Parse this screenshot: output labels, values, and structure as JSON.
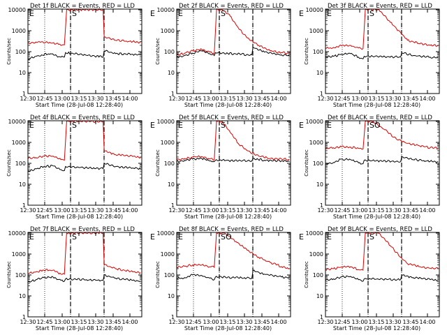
{
  "chart_data": [
    {
      "type": "line",
      "title": "Det 1f  BLACK = Events, RED = LLD",
      "ylabel": "Counts/sec",
      "xlabel": "Start Time (28-Jul-08 12:28:40)",
      "x_ticks": [
        "12:30",
        "12:45",
        "13:00",
        "13:15",
        "13:30",
        "13:45",
        "14:00"
      ],
      "y_ticks": [
        "1",
        "10",
        "100",
        "1000",
        "10000"
      ],
      "ylim": [
        1,
        10000
      ],
      "yscale": "log",
      "xlim": [
        "12:28",
        "14:08"
      ],
      "markers": [
        "E",
        "S",
        "E"
      ],
      "series": [
        {
          "color": "#000000",
          "x": [
            "12:28",
            "12:35",
            "12:40",
            "12:48",
            "12:55",
            "13:00",
            "13:01",
            "13:34",
            "13:35",
            "13:45",
            "14:00",
            "14:07"
          ],
          "y": [
            45,
            60,
            70,
            80,
            58,
            55,
            90,
            55,
            110,
            80,
            75,
            70
          ]
        },
        {
          "color": "#dd0000",
          "x": [
            "12:28",
            "12:35",
            "12:40",
            "12:48",
            "12:55",
            "13:00",
            "13:02",
            "13:34",
            "13:35",
            "13:45",
            "14:00",
            "14:07"
          ],
          "y": [
            250,
            290,
            300,
            260,
            220,
            210,
            10000,
            10000,
            500,
            350,
            300,
            280
          ]
        }
      ]
    },
    {
      "type": "line",
      "title": "Det 2f  BLACK = Events, RED = LLD",
      "ylabel": "Counts/sec",
      "xlabel": "Start Time (28-Jul-08 12:28:40)",
      "x_ticks": [
        "12:30",
        "12:45",
        "13:00",
        "13:15",
        "13:30",
        "13:45",
        "14:00"
      ],
      "y_ticks": [
        "1",
        "10",
        "100",
        "1000",
        "10000"
      ],
      "ylim": [
        1,
        10000
      ],
      "yscale": "log",
      "xlim": [
        "12:28",
        "14:08"
      ],
      "markers": [
        "E",
        "S",
        "E"
      ],
      "series": [
        {
          "color": "#000000",
          "x": [
            "12:28",
            "12:35",
            "12:42",
            "12:50",
            "12:57",
            "13:01",
            "13:02",
            "13:34",
            "13:35",
            "13:45",
            "14:00",
            "14:07"
          ],
          "y": [
            55,
            65,
            85,
            110,
            80,
            65,
            90,
            70,
            160,
            95,
            70,
            65
          ]
        },
        {
          "color": "#dd0000",
          "x": [
            "12:28",
            "12:35",
            "12:42",
            "12:50",
            "12:57",
            "13:01",
            "13:03",
            "13:08",
            "13:15",
            "13:22",
            "13:30",
            "13:40",
            "13:50",
            "14:00",
            "14:07"
          ],
          "y": [
            70,
            85,
            110,
            130,
            95,
            85,
            10000,
            10000,
            5000,
            1400,
            450,
            200,
            110,
            90,
            85
          ]
        }
      ]
    },
    {
      "type": "line",
      "title": "Det 3f  BLACK = Events, RED = LLD",
      "ylabel": "Counts/sec",
      "xlabel": "Start Time (28-Jul-08 12:28:40)",
      "x_ticks": [
        "12:30",
        "12:45",
        "13:00",
        "13:15",
        "13:30",
        "13:45",
        "14:00"
      ],
      "y_ticks": [
        "1",
        "10",
        "100",
        "1000",
        "10000"
      ],
      "ylim": [
        1,
        10000
      ],
      "yscale": "log",
      "xlim": [
        "12:28",
        "14:08"
      ],
      "markers": [
        "E",
        "S",
        "E"
      ],
      "series": [
        {
          "color": "#000000",
          "x": [
            "12:28",
            "12:35",
            "12:42",
            "12:50",
            "12:57",
            "13:01",
            "13:02",
            "13:34",
            "13:35",
            "13:45",
            "14:00",
            "14:07"
          ],
          "y": [
            55,
            60,
            75,
            80,
            55,
            45,
            60,
            55,
            90,
            65,
            55,
            50
          ]
        },
        {
          "color": "#dd0000",
          "x": [
            "12:28",
            "12:35",
            "12:42",
            "12:50",
            "12:57",
            "13:01",
            "13:03",
            "13:15",
            "13:25",
            "13:34",
            "13:40",
            "13:50",
            "14:00",
            "14:07"
          ],
          "y": [
            140,
            160,
            190,
            200,
            150,
            140,
            10000,
            10000,
            2500,
            800,
            350,
            250,
            200,
            190
          ]
        }
      ]
    },
    {
      "type": "line",
      "title": "Det 4f  BLACK = Events, RED = LLD",
      "ylabel": "Counts/sec",
      "xlabel": "Start Time (28-Jul-08 12:28:40)",
      "x_ticks": [
        "12:30",
        "12:45",
        "13:00",
        "13:15",
        "13:30",
        "13:45",
        "14:00"
      ],
      "y_ticks": [
        "1",
        "10",
        "100",
        "1000",
        "10000"
      ],
      "ylim": [
        1,
        10000
      ],
      "yscale": "log",
      "xlim": [
        "12:28",
        "14:08"
      ],
      "markers": [
        "E",
        "S",
        "E"
      ],
      "series": [
        {
          "color": "#000000",
          "x": [
            "12:28",
            "12:35",
            "12:42",
            "12:50",
            "12:57",
            "13:00",
            "13:01",
            "13:34",
            "13:35",
            "13:45",
            "14:00",
            "14:07"
          ],
          "y": [
            40,
            55,
            70,
            75,
            50,
            45,
            70,
            55,
            100,
            70,
            60,
            55
          ]
        },
        {
          "color": "#dd0000",
          "x": [
            "12:28",
            "12:35",
            "12:42",
            "12:50",
            "12:57",
            "13:00",
            "13:02",
            "13:34",
            "13:35",
            "13:45",
            "14:00",
            "14:07"
          ],
          "y": [
            170,
            190,
            220,
            220,
            150,
            140,
            10000,
            10000,
            400,
            260,
            210,
            190
          ]
        }
      ]
    },
    {
      "type": "line",
      "title": "Det 5f  BLACK = Events, RED = LLD",
      "ylabel": "Counts/sec",
      "xlabel": "Start Time (28-Jul-08 12:28:40)",
      "x_ticks": [
        "12:30",
        "12:45",
        "13:00",
        "13:15",
        "13:30",
        "13:45",
        "14:00"
      ],
      "y_ticks": [
        "1",
        "10",
        "100",
        "1000",
        "10000"
      ],
      "ylim": [
        1,
        10000
      ],
      "yscale": "log",
      "xlim": [
        "12:28",
        "14:08"
      ],
      "markers": [
        "E",
        "S",
        "E"
      ],
      "series": [
        {
          "color": "#000000",
          "x": [
            "12:28",
            "12:35",
            "12:42",
            "12:50",
            "12:57",
            "13:01",
            "13:02",
            "13:34",
            "13:35",
            "13:45",
            "14:00",
            "14:07"
          ],
          "y": [
            120,
            140,
            160,
            170,
            130,
            120,
            140,
            130,
            170,
            140,
            130,
            120
          ]
        },
        {
          "color": "#dd0000",
          "x": [
            "12:28",
            "12:35",
            "12:42",
            "12:50",
            "12:57",
            "13:01",
            "13:03",
            "13:08",
            "13:15",
            "13:22",
            "13:30",
            "13:40",
            "13:50",
            "14:00",
            "14:07"
          ],
          "y": [
            150,
            170,
            200,
            210,
            160,
            150,
            10000,
            10000,
            3000,
            900,
            400,
            220,
            170,
            160,
            150
          ]
        }
      ]
    },
    {
      "type": "line",
      "title": "Det 6f  BLACK = Events, RED = LLD",
      "ylabel": "Counts/sec",
      "xlabel": "Start Time (28-Jul-08 12:28:40)",
      "x_ticks": [
        "12:30",
        "12:45",
        "13:00",
        "13:15",
        "13:30",
        "13:45",
        "14:00"
      ],
      "y_ticks": [
        "1",
        "10",
        "100",
        "1000",
        "10000"
      ],
      "ylim": [
        1,
        10000
      ],
      "yscale": "log",
      "xlim": [
        "12:28",
        "14:08"
      ],
      "markers": [
        "E",
        "SO",
        "E"
      ],
      "series": [
        {
          "color": "#000000",
          "x": [
            "12:28",
            "12:35",
            "12:42",
            "12:50",
            "12:57",
            "13:01",
            "13:02",
            "13:34",
            "13:35",
            "13:45",
            "14:00",
            "14:07"
          ],
          "y": [
            95,
            110,
            160,
            150,
            105,
            95,
            140,
            120,
            200,
            150,
            125,
            120
          ]
        },
        {
          "color": "#dd0000",
          "x": [
            "12:28",
            "12:35",
            "12:42",
            "12:50",
            "12:57",
            "13:01",
            "13:03",
            "13:10",
            "13:20",
            "13:30",
            "13:40",
            "13:50",
            "14:00",
            "14:07"
          ],
          "y": [
            500,
            560,
            620,
            600,
            520,
            480,
            10000,
            10000,
            4000,
            1500,
            900,
            700,
            560,
            520
          ]
        }
      ]
    },
    {
      "type": "line",
      "title": "Det 7f  BLACK = Events, RED = LLD",
      "ylabel": "Counts/sec",
      "xlabel": "Start Time (28-Jul-08 12:28:40)",
      "x_ticks": [
        "12:30",
        "12:45",
        "13:00",
        "13:15",
        "13:30",
        "13:45",
        "14:00"
      ],
      "y_ticks": [
        "1",
        "10",
        "100",
        "1000",
        "10000"
      ],
      "ylim": [
        1,
        10000
      ],
      "yscale": "log",
      "xlim": [
        "12:28",
        "14:08"
      ],
      "markers": [
        "E",
        "S",
        "E"
      ],
      "series": [
        {
          "color": "#000000",
          "x": [
            "12:28",
            "12:35",
            "12:42",
            "12:50",
            "12:57",
            "13:00",
            "13:01",
            "13:34",
            "13:35",
            "13:45",
            "14:00",
            "14:07"
          ],
          "y": [
            45,
            60,
            75,
            80,
            55,
            50,
            65,
            55,
            100,
            70,
            55,
            50
          ]
        },
        {
          "color": "#dd0000",
          "x": [
            "12:28",
            "12:35",
            "12:42",
            "12:50",
            "12:57",
            "13:00",
            "13:02",
            "13:34",
            "13:35",
            "13:45",
            "14:00",
            "14:07"
          ],
          "y": [
            120,
            140,
            170,
            170,
            110,
            110,
            10000,
            10000,
            300,
            200,
            140,
            130
          ]
        }
      ]
    },
    {
      "type": "line",
      "title": "Det 8f  BLACK = Events, RED = LLD",
      "ylabel": "Counts/sec",
      "xlabel": "Start Time (28-Jul-08 12:28:40)",
      "x_ticks": [
        "12:30",
        "12:45",
        "13:00",
        "13:15",
        "13:30",
        "13:45",
        "14:00"
      ],
      "y_ticks": [
        "1",
        "10",
        "100",
        "1000",
        "10000"
      ],
      "ylim": [
        1,
        10000
      ],
      "yscale": "log",
      "xlim": [
        "12:28",
        "14:08"
      ],
      "markers": [
        "E",
        "SO",
        "E"
      ],
      "series": [
        {
          "color": "#000000",
          "x": [
            "12:28",
            "12:35",
            "12:42",
            "12:50",
            "12:57",
            "13:01",
            "13:02",
            "13:34",
            "13:35",
            "13:45",
            "14:00",
            "14:07"
          ],
          "y": [
            65,
            75,
            100,
            95,
            70,
            60,
            80,
            70,
            160,
            110,
            80,
            75
          ]
        },
        {
          "color": "#dd0000",
          "x": [
            "12:28",
            "12:35",
            "12:42",
            "12:50",
            "12:57",
            "13:01",
            "13:03",
            "13:10",
            "13:20",
            "13:30",
            "13:40",
            "13:50",
            "14:00",
            "14:07"
          ],
          "y": [
            240,
            260,
            300,
            300,
            250,
            230,
            10000,
            10000,
            4000,
            1500,
            700,
            400,
            250,
            200
          ]
        }
      ]
    },
    {
      "type": "line",
      "title": "Det 9f  BLACK = Events, RED = LLD",
      "ylabel": "Counts/sec",
      "xlabel": "Start Time (28-Jul-08 12:28:40)",
      "x_ticks": [
        "12:30",
        "12:45",
        "13:00",
        "13:15",
        "13:30",
        "13:45",
        "14:00"
      ],
      "y_ticks": [
        "1",
        "10",
        "100",
        "1000",
        "10000"
      ],
      "ylim": [
        1,
        10000
      ],
      "yscale": "log",
      "xlim": [
        "12:28",
        "14:08"
      ],
      "markers": [
        "E",
        "S",
        "E"
      ],
      "series": [
        {
          "color": "#000000",
          "x": [
            "12:28",
            "12:35",
            "12:42",
            "12:50",
            "12:57",
            "13:01",
            "13:02",
            "13:34",
            "13:35",
            "13:45",
            "14:00",
            "14:07"
          ],
          "y": [
            55,
            65,
            80,
            85,
            60,
            50,
            65,
            60,
            100,
            75,
            60,
            55
          ]
        },
        {
          "color": "#dd0000",
          "x": [
            "12:28",
            "12:35",
            "12:42",
            "12:50",
            "12:57",
            "13:01",
            "13:03",
            "13:15",
            "13:25",
            "13:34",
            "13:40",
            "13:50",
            "14:00",
            "14:07"
          ],
          "y": [
            180,
            200,
            240,
            250,
            180,
            170,
            10000,
            10000,
            2500,
            700,
            350,
            250,
            210,
            200
          ]
        }
      ]
    }
  ]
}
